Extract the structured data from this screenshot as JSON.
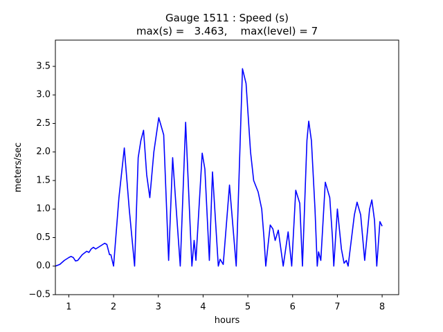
{
  "chart_data": {
    "type": "line",
    "title": [
      "Gauge 1511 : Speed (s)",
      "max(s) =   3.463,    max(level) = 7"
    ],
    "x_label": "hours",
    "y_label": "meters/sec",
    "x": [
      0.7,
      0.8,
      0.9,
      1.0,
      1.05,
      1.1,
      1.15,
      1.2,
      1.3,
      1.4,
      1.45,
      1.5,
      1.55,
      1.6,
      1.7,
      1.8,
      1.85,
      1.91,
      1.94,
      2.0,
      2.12,
      2.24,
      2.35,
      2.47,
      2.55,
      2.61,
      2.67,
      2.74,
      2.81,
      2.9,
      3.01,
      3.12,
      3.23,
      3.32,
      3.4,
      3.49,
      3.61,
      3.75,
      3.8,
      3.84,
      3.98,
      4.04,
      4.14,
      4.21,
      4.34,
      4.38,
      4.45,
      4.59,
      4.74,
      4.88,
      4.96,
      5.06,
      5.13,
      5.23,
      5.31,
      5.36,
      5.4,
      5.5,
      5.56,
      5.61,
      5.68,
      5.79,
      5.9,
      5.98,
      6.07,
      6.16,
      6.22,
      6.32,
      6.36,
      6.42,
      6.5,
      6.55,
      6.58,
      6.63,
      6.73,
      6.83,
      6.89,
      6.92,
      7.0,
      7.09,
      7.15,
      7.2,
      7.24,
      7.38,
      7.44,
      7.52,
      7.61,
      7.72,
      7.77,
      7.83,
      7.88,
      7.95,
      8.0
    ],
    "series": [
      {
        "name": "s",
        "color": "#0000ff",
        "values": [
          0.0,
          0.03,
          0.1,
          0.15,
          0.17,
          0.15,
          0.09,
          0.1,
          0.2,
          0.26,
          0.24,
          0.3,
          0.33,
          0.3,
          0.35,
          0.4,
          0.38,
          0.2,
          0.2,
          0.0,
          1.2,
          2.07,
          1.0,
          0.0,
          1.9,
          2.2,
          2.38,
          1.6,
          1.2,
          2.0,
          2.6,
          2.3,
          0.1,
          1.9,
          1.0,
          0.0,
          2.52,
          0.0,
          0.45,
          0.1,
          1.98,
          1.7,
          0.1,
          1.65,
          0.0,
          0.12,
          0.03,
          1.42,
          0.0,
          3.46,
          3.2,
          2.0,
          1.5,
          1.3,
          1.0,
          0.5,
          0.0,
          0.72,
          0.65,
          0.45,
          0.63,
          0.0,
          0.6,
          0.0,
          1.33,
          1.1,
          0.0,
          2.2,
          2.54,
          2.2,
          1.0,
          0.0,
          0.25,
          0.1,
          1.47,
          1.2,
          0.5,
          0.0,
          1.0,
          0.3,
          0.05,
          0.1,
          0.0,
          0.9,
          1.12,
          0.9,
          0.1,
          1.0,
          1.16,
          0.8,
          0.0,
          0.78,
          0.7
        ]
      }
    ],
    "xlim": [
      0.7,
      8.37
    ],
    "ylim": [
      -0.5,
      3.96
    ],
    "xticks": [
      1,
      2,
      3,
      4,
      5,
      6,
      7,
      8
    ],
    "yticks": [
      {
        "value": -0.5,
        "label": "−0.5"
      },
      {
        "value": 0,
        "label": "0.0"
      },
      0.5,
      {
        "value": 1,
        "label": "1.0"
      },
      1.5,
      {
        "value": 2,
        "label": "2.0"
      },
      2.5,
      {
        "value": 3,
        "label": "3.0"
      },
      3.5
    ],
    "grid": false
  }
}
